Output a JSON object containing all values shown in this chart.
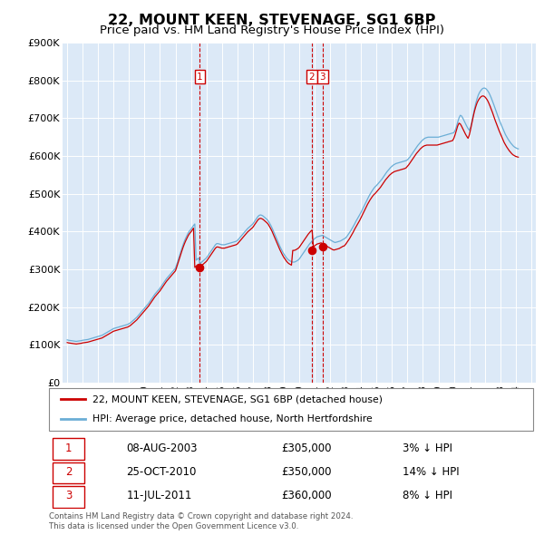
{
  "title": "22, MOUNT KEEN, STEVENAGE, SG1 6BP",
  "subtitle": "Price paid vs. HM Land Registry's House Price Index (HPI)",
  "title_fontsize": 11.5,
  "subtitle_fontsize": 9.5,
  "background_color": "#ffffff",
  "plot_bg_color": "#dce9f7",
  "grid_color": "#ffffff",
  "hpi_color": "#6baed6",
  "price_color": "#cc0000",
  "ylim": [
    0,
    900000
  ],
  "yticks": [
    0,
    100000,
    200000,
    300000,
    400000,
    500000,
    600000,
    700000,
    800000,
    900000
  ],
  "xlim_left": 1994.7,
  "xlim_right": 2025.3,
  "footer": "Contains HM Land Registry data © Crown copyright and database right 2024.\nThis data is licensed under the Open Government Licence v3.0.",
  "legend_address": "22, MOUNT KEEN, STEVENAGE, SG1 6BP (detached house)",
  "legend_hpi": "HPI: Average price, detached house, North Hertfordshire",
  "transactions": [
    {
      "num": 1,
      "date": "08-AUG-2003",
      "price": 305000,
      "rel": "3% ↓ HPI",
      "x_year": 2003.58
    },
    {
      "num": 2,
      "date": "25-OCT-2010",
      "price": 350000,
      "rel": "14% ↓ HPI",
      "x_year": 2010.8
    },
    {
      "num": 3,
      "date": "11-JUL-2011",
      "price": 360000,
      "rel": "8% ↓ HPI",
      "x_year": 2011.52
    }
  ],
  "hpi_months": [
    1995,
    1995.083,
    1995.167,
    1995.25,
    1995.333,
    1995.417,
    1995.5,
    1995.583,
    1995.667,
    1995.75,
    1995.833,
    1995.917,
    1996,
    1996.083,
    1996.167,
    1996.25,
    1996.333,
    1996.417,
    1996.5,
    1996.583,
    1996.667,
    1996.75,
    1996.833,
    1996.917,
    1997,
    1997.083,
    1997.167,
    1997.25,
    1997.333,
    1997.417,
    1997.5,
    1997.583,
    1997.667,
    1997.75,
    1997.833,
    1997.917,
    1998,
    1998.083,
    1998.167,
    1998.25,
    1998.333,
    1998.417,
    1998.5,
    1998.583,
    1998.667,
    1998.75,
    1998.833,
    1998.917,
    1999,
    1999.083,
    1999.167,
    1999.25,
    1999.333,
    1999.417,
    1999.5,
    1999.583,
    1999.667,
    1999.75,
    1999.833,
    1999.917,
    2000,
    2000.083,
    2000.167,
    2000.25,
    2000.333,
    2000.417,
    2000.5,
    2000.583,
    2000.667,
    2000.75,
    2000.833,
    2000.917,
    2001,
    2001.083,
    2001.167,
    2001.25,
    2001.333,
    2001.417,
    2001.5,
    2001.583,
    2001.667,
    2001.75,
    2001.833,
    2001.917,
    2002,
    2002.083,
    2002.167,
    2002.25,
    2002.333,
    2002.417,
    2002.5,
    2002.583,
    2002.667,
    2002.75,
    2002.833,
    2002.917,
    2003,
    2003.083,
    2003.167,
    2003.25,
    2003.333,
    2003.417,
    2003.5,
    2003.583,
    2003.667,
    2003.75,
    2003.833,
    2003.917,
    2004,
    2004.083,
    2004.167,
    2004.25,
    2004.333,
    2004.417,
    2004.5,
    2004.583,
    2004.667,
    2004.75,
    2004.833,
    2004.917,
    2005,
    2005.083,
    2005.167,
    2005.25,
    2005.333,
    2005.417,
    2005.5,
    2005.583,
    2005.667,
    2005.75,
    2005.833,
    2005.917,
    2006,
    2006.083,
    2006.167,
    2006.25,
    2006.333,
    2006.417,
    2006.5,
    2006.583,
    2006.667,
    2006.75,
    2006.833,
    2006.917,
    2007,
    2007.083,
    2007.167,
    2007.25,
    2007.333,
    2007.417,
    2007.5,
    2007.583,
    2007.667,
    2007.75,
    2007.833,
    2007.917,
    2008,
    2008.083,
    2008.167,
    2008.25,
    2008.333,
    2008.417,
    2008.5,
    2008.583,
    2008.667,
    2008.75,
    2008.833,
    2008.917,
    2009,
    2009.083,
    2009.167,
    2009.25,
    2009.333,
    2009.417,
    2009.5,
    2009.583,
    2009.667,
    2009.75,
    2009.833,
    2009.917,
    2010,
    2010.083,
    2010.167,
    2010.25,
    2010.333,
    2010.417,
    2010.5,
    2010.583,
    2010.667,
    2010.75,
    2010.833,
    2010.917,
    2011,
    2011.083,
    2011.167,
    2011.25,
    2011.333,
    2011.417,
    2011.5,
    2011.583,
    2011.667,
    2011.75,
    2011.833,
    2011.917,
    2012,
    2012.083,
    2012.167,
    2012.25,
    2012.333,
    2012.417,
    2012.5,
    2012.583,
    2012.667,
    2012.75,
    2012.833,
    2012.917,
    2013,
    2013.083,
    2013.167,
    2013.25,
    2013.333,
    2013.417,
    2013.5,
    2013.583,
    2013.667,
    2013.75,
    2013.833,
    2013.917,
    2014,
    2014.083,
    2014.167,
    2014.25,
    2014.333,
    2014.417,
    2014.5,
    2014.583,
    2014.667,
    2014.75,
    2014.833,
    2014.917,
    2015,
    2015.083,
    2015.167,
    2015.25,
    2015.333,
    2015.417,
    2015.5,
    2015.583,
    2015.667,
    2015.75,
    2015.833,
    2015.917,
    2016,
    2016.083,
    2016.167,
    2016.25,
    2016.333,
    2016.417,
    2016.5,
    2016.583,
    2016.667,
    2016.75,
    2016.833,
    2016.917,
    2017,
    2017.083,
    2017.167,
    2017.25,
    2017.333,
    2017.417,
    2017.5,
    2017.583,
    2017.667,
    2017.75,
    2017.833,
    2017.917,
    2018,
    2018.083,
    2018.167,
    2018.25,
    2018.333,
    2018.417,
    2018.5,
    2018.583,
    2018.667,
    2018.75,
    2018.833,
    2018.917,
    2019,
    2019.083,
    2019.167,
    2019.25,
    2019.333,
    2019.417,
    2019.5,
    2019.583,
    2019.667,
    2019.75,
    2019.833,
    2019.917,
    2020,
    2020.083,
    2020.167,
    2020.25,
    2020.333,
    2020.417,
    2020.5,
    2020.583,
    2020.667,
    2020.75,
    2020.833,
    2020.917,
    2021,
    2021.083,
    2021.167,
    2021.25,
    2021.333,
    2021.417,
    2021.5,
    2021.583,
    2021.667,
    2021.75,
    2021.833,
    2021.917,
    2022,
    2022.083,
    2022.167,
    2022.25,
    2022.333,
    2022.417,
    2022.5,
    2022.583,
    2022.667,
    2022.75,
    2022.833,
    2022.917,
    2023,
    2023.083,
    2023.167,
    2023.25,
    2023.333,
    2023.417,
    2023.5,
    2023.583,
    2023.667,
    2023.75,
    2023.833,
    2023.917,
    2024,
    2024.083,
    2024.167,
    2024.25
  ],
  "hpi_values": [
    113000,
    112000,
    111500,
    111000,
    110500,
    110000,
    109500,
    109000,
    109500,
    110000,
    110500,
    111000,
    112000,
    112500,
    113000,
    113500,
    114000,
    115000,
    116000,
    117000,
    118000,
    119000,
    120000,
    121000,
    122000,
    123000,
    124000,
    125000,
    127000,
    129000,
    131000,
    133000,
    135000,
    137000,
    139000,
    141000,
    143000,
    144000,
    145000,
    146000,
    147000,
    148000,
    149000,
    150000,
    151000,
    152000,
    153000,
    154000,
    156000,
    158000,
    161000,
    164000,
    167000,
    170000,
    173000,
    177000,
    181000,
    185000,
    189000,
    193000,
    197000,
    201000,
    205000,
    209000,
    214000,
    219000,
    224000,
    229000,
    234000,
    238000,
    242000,
    246000,
    250000,
    255000,
    260000,
    265000,
    270000,
    275000,
    279000,
    283000,
    287000,
    291000,
    295000,
    299000,
    303000,
    313000,
    324000,
    335000,
    346000,
    356000,
    366000,
    375000,
    383000,
    390000,
    397000,
    402000,
    406000,
    411000,
    416000,
    420000,
    324000,
    327000,
    330000,
    314000,
    318000,
    321000,
    324000,
    327000,
    330000,
    335000,
    340000,
    345000,
    350000,
    355000,
    360000,
    365000,
    368000,
    368000,
    367000,
    366000,
    365000,
    365000,
    365000,
    366000,
    367000,
    368000,
    369000,
    370000,
    371000,
    372000,
    373000,
    374000,
    376000,
    380000,
    384000,
    388000,
    392000,
    396000,
    400000,
    404000,
    408000,
    411000,
    414000,
    417000,
    420000,
    425000,
    430000,
    435000,
    440000,
    443000,
    444000,
    443000,
    441000,
    438000,
    435000,
    432000,
    428000,
    422000,
    416000,
    409000,
    401000,
    393000,
    385000,
    377000,
    369000,
    361000,
    354000,
    347000,
    341000,
    336000,
    331000,
    327000,
    324000,
    322000,
    320000,
    319000,
    319000,
    320000,
    322000,
    324000,
    327000,
    332000,
    337000,
    342000,
    347000,
    352000,
    357000,
    362000,
    367000,
    371000,
    375000,
    378000,
    381000,
    384000,
    386000,
    387000,
    388000,
    389000,
    390000,
    388000,
    386000,
    384000,
    382000,
    380000,
    378000,
    376000,
    374000,
    372000,
    371000,
    372000,
    373000,
    374000,
    375000,
    377000,
    379000,
    381000,
    383000,
    387000,
    392000,
    397000,
    402000,
    408000,
    414000,
    420000,
    427000,
    433000,
    439000,
    445000,
    451000,
    458000,
    465000,
    472000,
    479000,
    486000,
    493000,
    499000,
    505000,
    510000,
    515000,
    519000,
    522000,
    526000,
    530000,
    534000,
    538000,
    543000,
    548000,
    553000,
    558000,
    562000,
    566000,
    570000,
    573000,
    576000,
    578000,
    580000,
    581000,
    582000,
    583000,
    584000,
    585000,
    586000,
    587000,
    588000,
    590000,
    594000,
    598000,
    603000,
    608000,
    613000,
    618000,
    623000,
    628000,
    632000,
    636000,
    640000,
    643000,
    646000,
    648000,
    649000,
    650000,
    650000,
    650000,
    650000,
    650000,
    650000,
    650000,
    650000,
    650000,
    651000,
    652000,
    653000,
    654000,
    655000,
    656000,
    657000,
    658000,
    659000,
    660000,
    661000,
    662000,
    668000,
    678000,
    690000,
    701000,
    708000,
    706000,
    700000,
    693000,
    686000,
    679000,
    673000,
    668000,
    677000,
    692000,
    709000,
    725000,
    740000,
    752000,
    762000,
    769000,
    774000,
    778000,
    780000,
    780000,
    778000,
    774000,
    769000,
    762000,
    754000,
    745000,
    736000,
    726000,
    716000,
    707000,
    698000,
    689000,
    681000,
    673000,
    665000,
    657000,
    651000,
    645000,
    640000,
    635000,
    631000,
    627000,
    624000,
    622000,
    620000,
    619000,
    618000
  ],
  "red_values": [
    106000,
    105000,
    104500,
    104000,
    103500,
    103000,
    102500,
    102000,
    102500,
    103000,
    103500,
    104000,
    105000,
    105500,
    106000,
    106500,
    107000,
    108000,
    109000,
    110000,
    111000,
    112000,
    113000,
    114000,
    115000,
    116000,
    117000,
    118000,
    120000,
    122000,
    124000,
    126000,
    128000,
    130000,
    132000,
    134000,
    136000,
    137000,
    138000,
    139000,
    140000,
    141000,
    142000,
    143000,
    144000,
    145000,
    146000,
    147000,
    149000,
    151000,
    154000,
    157000,
    160000,
    163000,
    166000,
    170000,
    174000,
    178000,
    182000,
    186000,
    190000,
    194000,
    198000,
    202000,
    207000,
    212000,
    217000,
    222000,
    227000,
    231000,
    235000,
    239000,
    243000,
    248000,
    253000,
    258000,
    263000,
    268000,
    272000,
    276000,
    280000,
    284000,
    288000,
    292000,
    296000,
    306000,
    317000,
    328000,
    339000,
    349000,
    359000,
    368000,
    376000,
    383000,
    390000,
    395000,
    399000,
    404000,
    409000,
    305000,
    308000,
    311000,
    313000,
    306000,
    309000,
    312000,
    315000,
    318000,
    321000,
    326000,
    331000,
    336000,
    341000,
    346000,
    351000,
    356000,
    359000,
    359000,
    358000,
    357000,
    356000,
    356000,
    356000,
    357000,
    358000,
    359000,
    360000,
    361000,
    362000,
    363000,
    364000,
    365000,
    367000,
    371000,
    375000,
    379000,
    383000,
    387000,
    391000,
    395000,
    399000,
    402000,
    405000,
    408000,
    411000,
    416000,
    421000,
    426000,
    431000,
    434000,
    435000,
    434000,
    432000,
    429000,
    426000,
    423000,
    419000,
    413000,
    407000,
    400000,
    392000,
    384000,
    376000,
    368000,
    360000,
    352000,
    345000,
    338000,
    332000,
    327000,
    322000,
    318000,
    315000,
    313000,
    311000,
    350000,
    350000,
    351000,
    353000,
    355000,
    358000,
    363000,
    368000,
    373000,
    378000,
    383000,
    388000,
    393000,
    397000,
    401000,
    404000,
    360000,
    362000,
    365000,
    367000,
    368000,
    369000,
    370000,
    368000,
    366000,
    364000,
    362000,
    360000,
    358000,
    356000,
    354000,
    352000,
    351000,
    352000,
    353000,
    354000,
    355000,
    357000,
    359000,
    361000,
    362000,
    366000,
    371000,
    376000,
    381000,
    387000,
    393000,
    399000,
    406000,
    412000,
    418000,
    424000,
    430000,
    437000,
    444000,
    451000,
    458000,
    465000,
    472000,
    478000,
    484000,
    489000,
    494000,
    498000,
    501000,
    505000,
    509000,
    513000,
    517000,
    522000,
    527000,
    532000,
    537000,
    541000,
    545000,
    549000,
    552000,
    555000,
    557000,
    559000,
    560000,
    561000,
    562000,
    563000,
    564000,
    565000,
    566000,
    567000,
    569000,
    573000,
    577000,
    582000,
    587000,
    592000,
    597000,
    602000,
    607000,
    611000,
    615000,
    619000,
    622000,
    625000,
    627000,
    628000,
    629000,
    629000,
    629000,
    629000,
    629000,
    629000,
    629000,
    629000,
    629000,
    630000,
    631000,
    632000,
    633000,
    634000,
    635000,
    636000,
    637000,
    638000,
    639000,
    640000,
    641000,
    647000,
    657000,
    669000,
    680000,
    687000,
    685000,
    679000,
    672000,
    665000,
    658000,
    652000,
    647000,
    656000,
    671000,
    688000,
    704000,
    719000,
    731000,
    741000,
    748000,
    753000,
    757000,
    759000,
    759000,
    757000,
    753000,
    748000,
    741000,
    733000,
    724000,
    715000,
    705000,
    695000,
    686000,
    677000,
    668000,
    660000,
    652000,
    644000,
    636000,
    630000,
    624000,
    619000,
    614000,
    610000,
    606000,
    603000,
    601000,
    599000,
    598000,
    597000
  ]
}
